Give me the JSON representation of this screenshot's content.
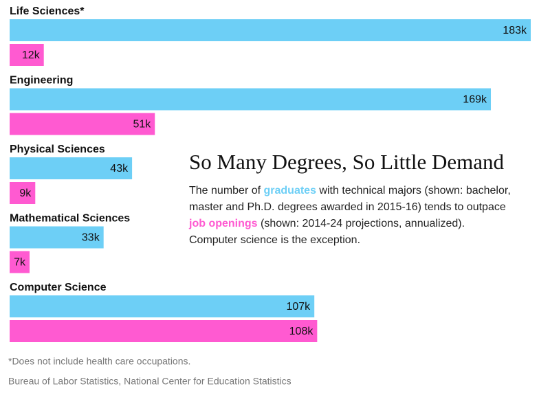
{
  "chart_data": {
    "type": "grouped-hbar",
    "title": "So Many Degrees, So Little Demand",
    "description_parts": [
      "The number of ",
      " with technical majors (shown: bachelor, master and Ph.D. degrees awarded in 2015-16) tends to outpace ",
      " (shown: 2014-24 projections, annualized). Computer science is the exception."
    ],
    "categories": [
      "Life Sciences*",
      "Engineering",
      "Physical Sciences",
      "Mathematical Sciences",
      "Computer Science"
    ],
    "series": [
      {
        "name": "graduates",
        "color": "#6dcff6",
        "values": [
          183000,
          169000,
          43000,
          33000,
          107000
        ],
        "value_labels": [
          "183k",
          "169k",
          "43k",
          "33k",
          "107k"
        ]
      },
      {
        "name": "job openings",
        "color": "#ff5ad1",
        "values": [
          12000,
          51000,
          9000,
          7000,
          108000
        ],
        "value_labels": [
          "12k",
          "51k",
          "9k",
          "7k",
          "108k"
        ]
      }
    ],
    "footnote": "*Does not include health care occupations.",
    "source": "Bureau of Labor Statistics, National Center for Education Statistics"
  }
}
